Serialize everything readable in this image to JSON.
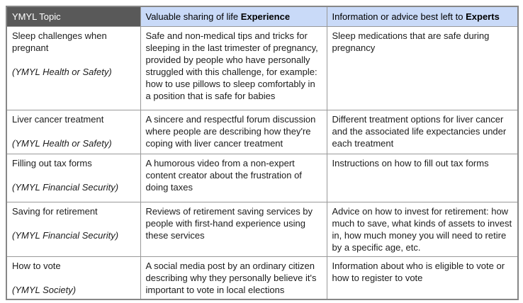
{
  "colors": {
    "header_dark_bg": "#595959",
    "header_dark_text": "#ffffff",
    "header_blue_bg": "#c9daf8",
    "topic_column_bg": "#f3f3f3",
    "body_cell_bg": "#ffffff",
    "border": "#999999",
    "body_text": "#1c1c1c"
  },
  "table": {
    "header": {
      "topic": "YMYL Topic",
      "experience_prefix": "Valuable sharing of life ",
      "experience_bold": "Experience",
      "experts_prefix": "Information or advice best left to ",
      "experts_bold": "Experts"
    },
    "rows": [
      {
        "topic": "Sleep challenges when pregnant",
        "category": "(YMYL Health or Safety)",
        "experience": "Safe and non-medical tips and tricks for sleeping in the last trimester of pregnancy, provided by people who have personally struggled with this challenge, for example: how to use pillows to sleep comfortably in a position that is safe for babies",
        "experts": "Sleep medications that are safe during pregnancy"
      },
      {
        "topic": "Liver cancer treatment",
        "category": "(YMYL Health or Safety)",
        "experience": "A sincere and respectful forum discussion where people are describing how they're coping with liver cancer treatment",
        "experts": "Different treatment options for liver cancer and the associated life expectancies under each treatment"
      },
      {
        "topic": "Filling out tax forms",
        "category": "(YMYL Financial Security)",
        "experience": "A humorous video from a non-expert content creator about the frustration of doing taxes",
        "experts": "Instructions on how to fill out tax forms"
      },
      {
        "topic": "Saving for retirement",
        "category": "(YMYL Financial Security)",
        "experience": "Reviews of retirement saving services by people with first-hand experience using these services",
        "experts": "Advice on how to invest for retirement: how much to save, what kinds of assets to invest in, how much money you will need to retire by a specific age, etc.",
        "experts_note": ""
      },
      {
        "topic": "How to vote",
        "category": "(YMYL Society)",
        "experience": "A social media post by an ordinary citizen describing why they personally believe it's important to vote in local elections",
        "experts": "Information about who is eligible to vote or how to register to vote"
      }
    ]
  }
}
